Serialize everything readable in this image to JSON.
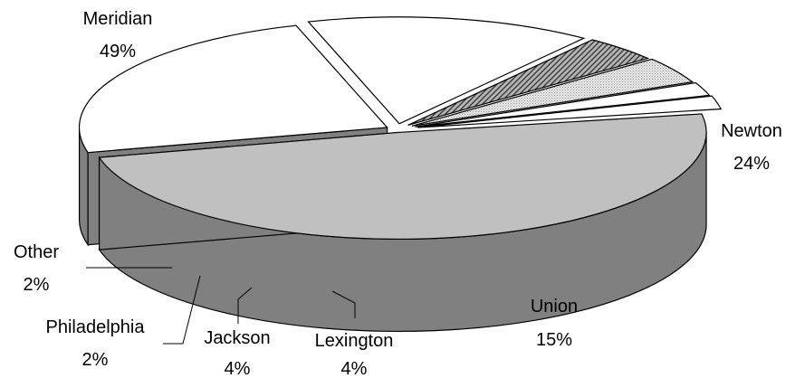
{
  "chart_data": {
    "type": "pie",
    "style": "3d-exploded",
    "title": "",
    "slices": [
      {
        "name": "Meridian",
        "value": 49,
        "label": "49%",
        "fill": "#c0c0c0",
        "side": "#808080"
      },
      {
        "name": "Newton",
        "value": 24,
        "label": "24%",
        "fill": "#ffffff",
        "side": "#808080"
      },
      {
        "name": "Union",
        "value": 15,
        "label": "15%",
        "fill": "#ffffff",
        "side": "#808080"
      },
      {
        "name": "Lexington",
        "value": 4,
        "label": "4%",
        "fill": "#9a9a9a",
        "side": "#808080",
        "pattern": "diagonal-hatch"
      },
      {
        "name": "Jackson",
        "value": 4,
        "label": "4%",
        "fill": "#dcdcdc",
        "side": "#9a9a9a",
        "pattern": "dots"
      },
      {
        "name": "Philadelphia",
        "value": 2,
        "label": "2%",
        "fill": "#ffffff",
        "side": "#505050"
      },
      {
        "name": "Other",
        "value": 2,
        "label": "2%",
        "fill": "#ffffff",
        "side": "#888888"
      }
    ]
  }
}
